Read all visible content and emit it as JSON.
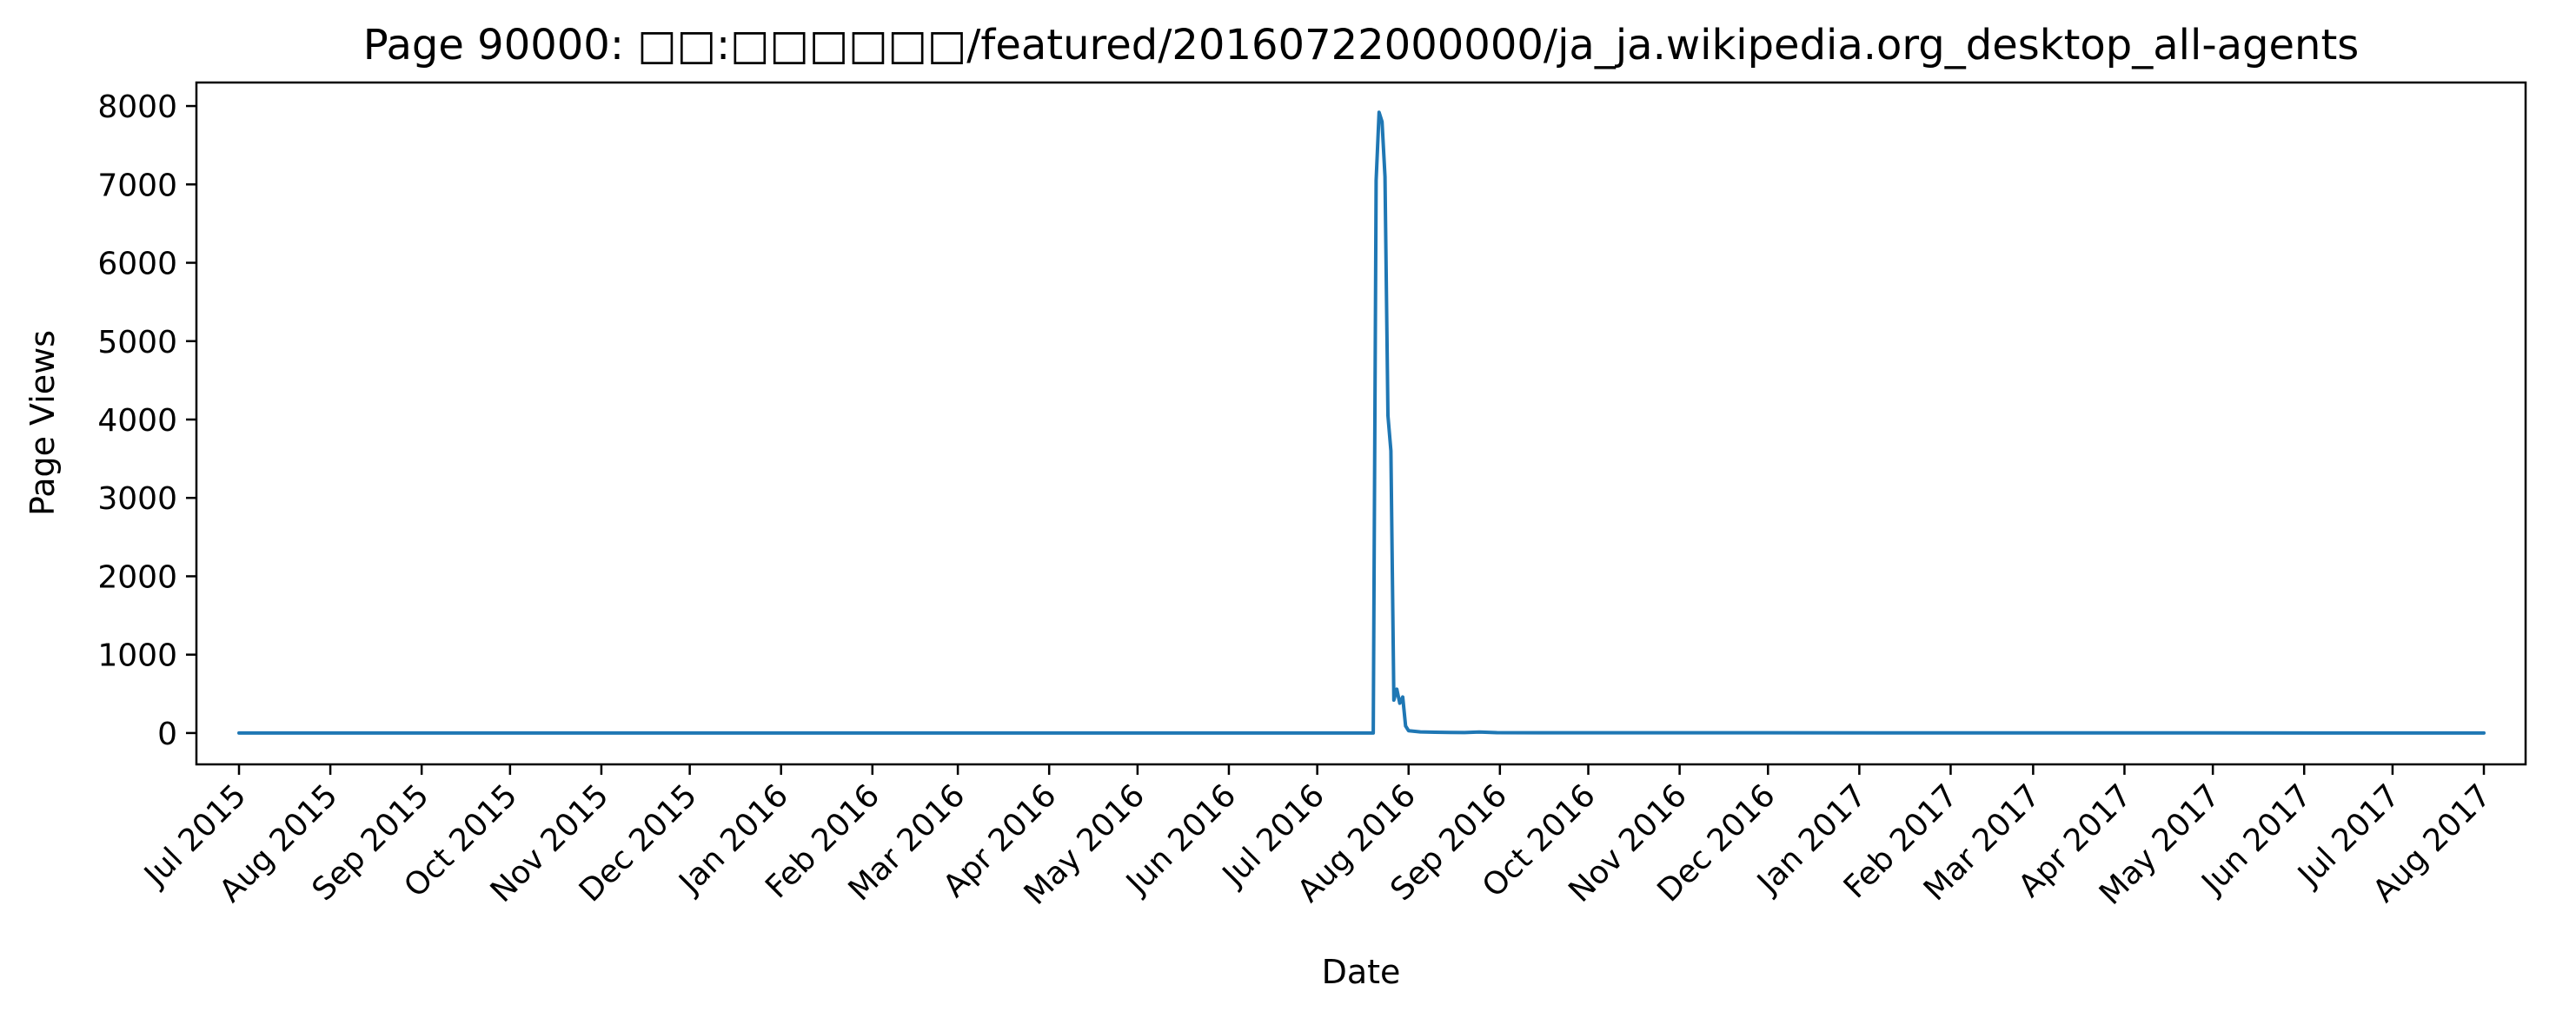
{
  "chart_data": {
    "type": "line",
    "title": "Page 90000: □□:□□□□□□/featured/20160722000000/ja_ja.wikipedia.org_desktop_all-agents",
    "xlabel": "Date",
    "ylabel": "Page Views",
    "xlim": [
      "2015-07-01",
      "2017-08-01"
    ],
    "ylim": [
      -400,
      8300
    ],
    "grid": false,
    "legend": "none",
    "x_ticks": [
      "Jul 2015",
      "Aug 2015",
      "Sep 2015",
      "Oct 2015",
      "Nov 2015",
      "Dec 2015",
      "Jan 2016",
      "Feb 2016",
      "Mar 2016",
      "Apr 2016",
      "May 2016",
      "Jun 2016",
      "Jul 2016",
      "Aug 2016",
      "Sep 2016",
      "Oct 2016",
      "Nov 2016",
      "Dec 2016",
      "Jan 2017",
      "Feb 2017",
      "Mar 2017",
      "Apr 2017",
      "May 2017",
      "Jun 2017",
      "Jul 2017",
      "Aug 2017"
    ],
    "x_tick_dates": [
      "2015-07-01",
      "2015-08-01",
      "2015-09-01",
      "2015-10-01",
      "2015-11-01",
      "2015-12-01",
      "2016-01-01",
      "2016-02-01",
      "2016-03-01",
      "2016-04-01",
      "2016-05-01",
      "2016-06-01",
      "2016-07-01",
      "2016-08-01",
      "2016-09-01",
      "2016-10-01",
      "2016-11-01",
      "2016-12-01",
      "2017-01-01",
      "2017-02-01",
      "2017-03-01",
      "2017-04-01",
      "2017-05-01",
      "2017-06-01",
      "2017-07-01",
      "2017-08-01"
    ],
    "y_ticks": [
      0,
      1000,
      2000,
      3000,
      4000,
      5000,
      6000,
      7000,
      8000
    ],
    "line_color": "#1f77b4",
    "series": [
      {
        "x": [
          "2015-07-01",
          "2016-07-20",
          "2016-07-21",
          "2016-07-22",
          "2016-07-23",
          "2016-07-24",
          "2016-07-25",
          "2016-07-26",
          "2016-07-27",
          "2016-07-28",
          "2016-07-29",
          "2016-07-30",
          "2016-07-31",
          "2016-08-01",
          "2016-08-05",
          "2016-08-10",
          "2016-08-15",
          "2016-08-20",
          "2016-08-25",
          "2016-08-31",
          "2016-09-15",
          "2017-08-01"
        ],
        "y": [
          0,
          0,
          7050,
          7920,
          7800,
          7100,
          4050,
          3600,
          420,
          560,
          380,
          460,
          90,
          30,
          15,
          10,
          8,
          6,
          12,
          5,
          3,
          0
        ]
      }
    ]
  }
}
